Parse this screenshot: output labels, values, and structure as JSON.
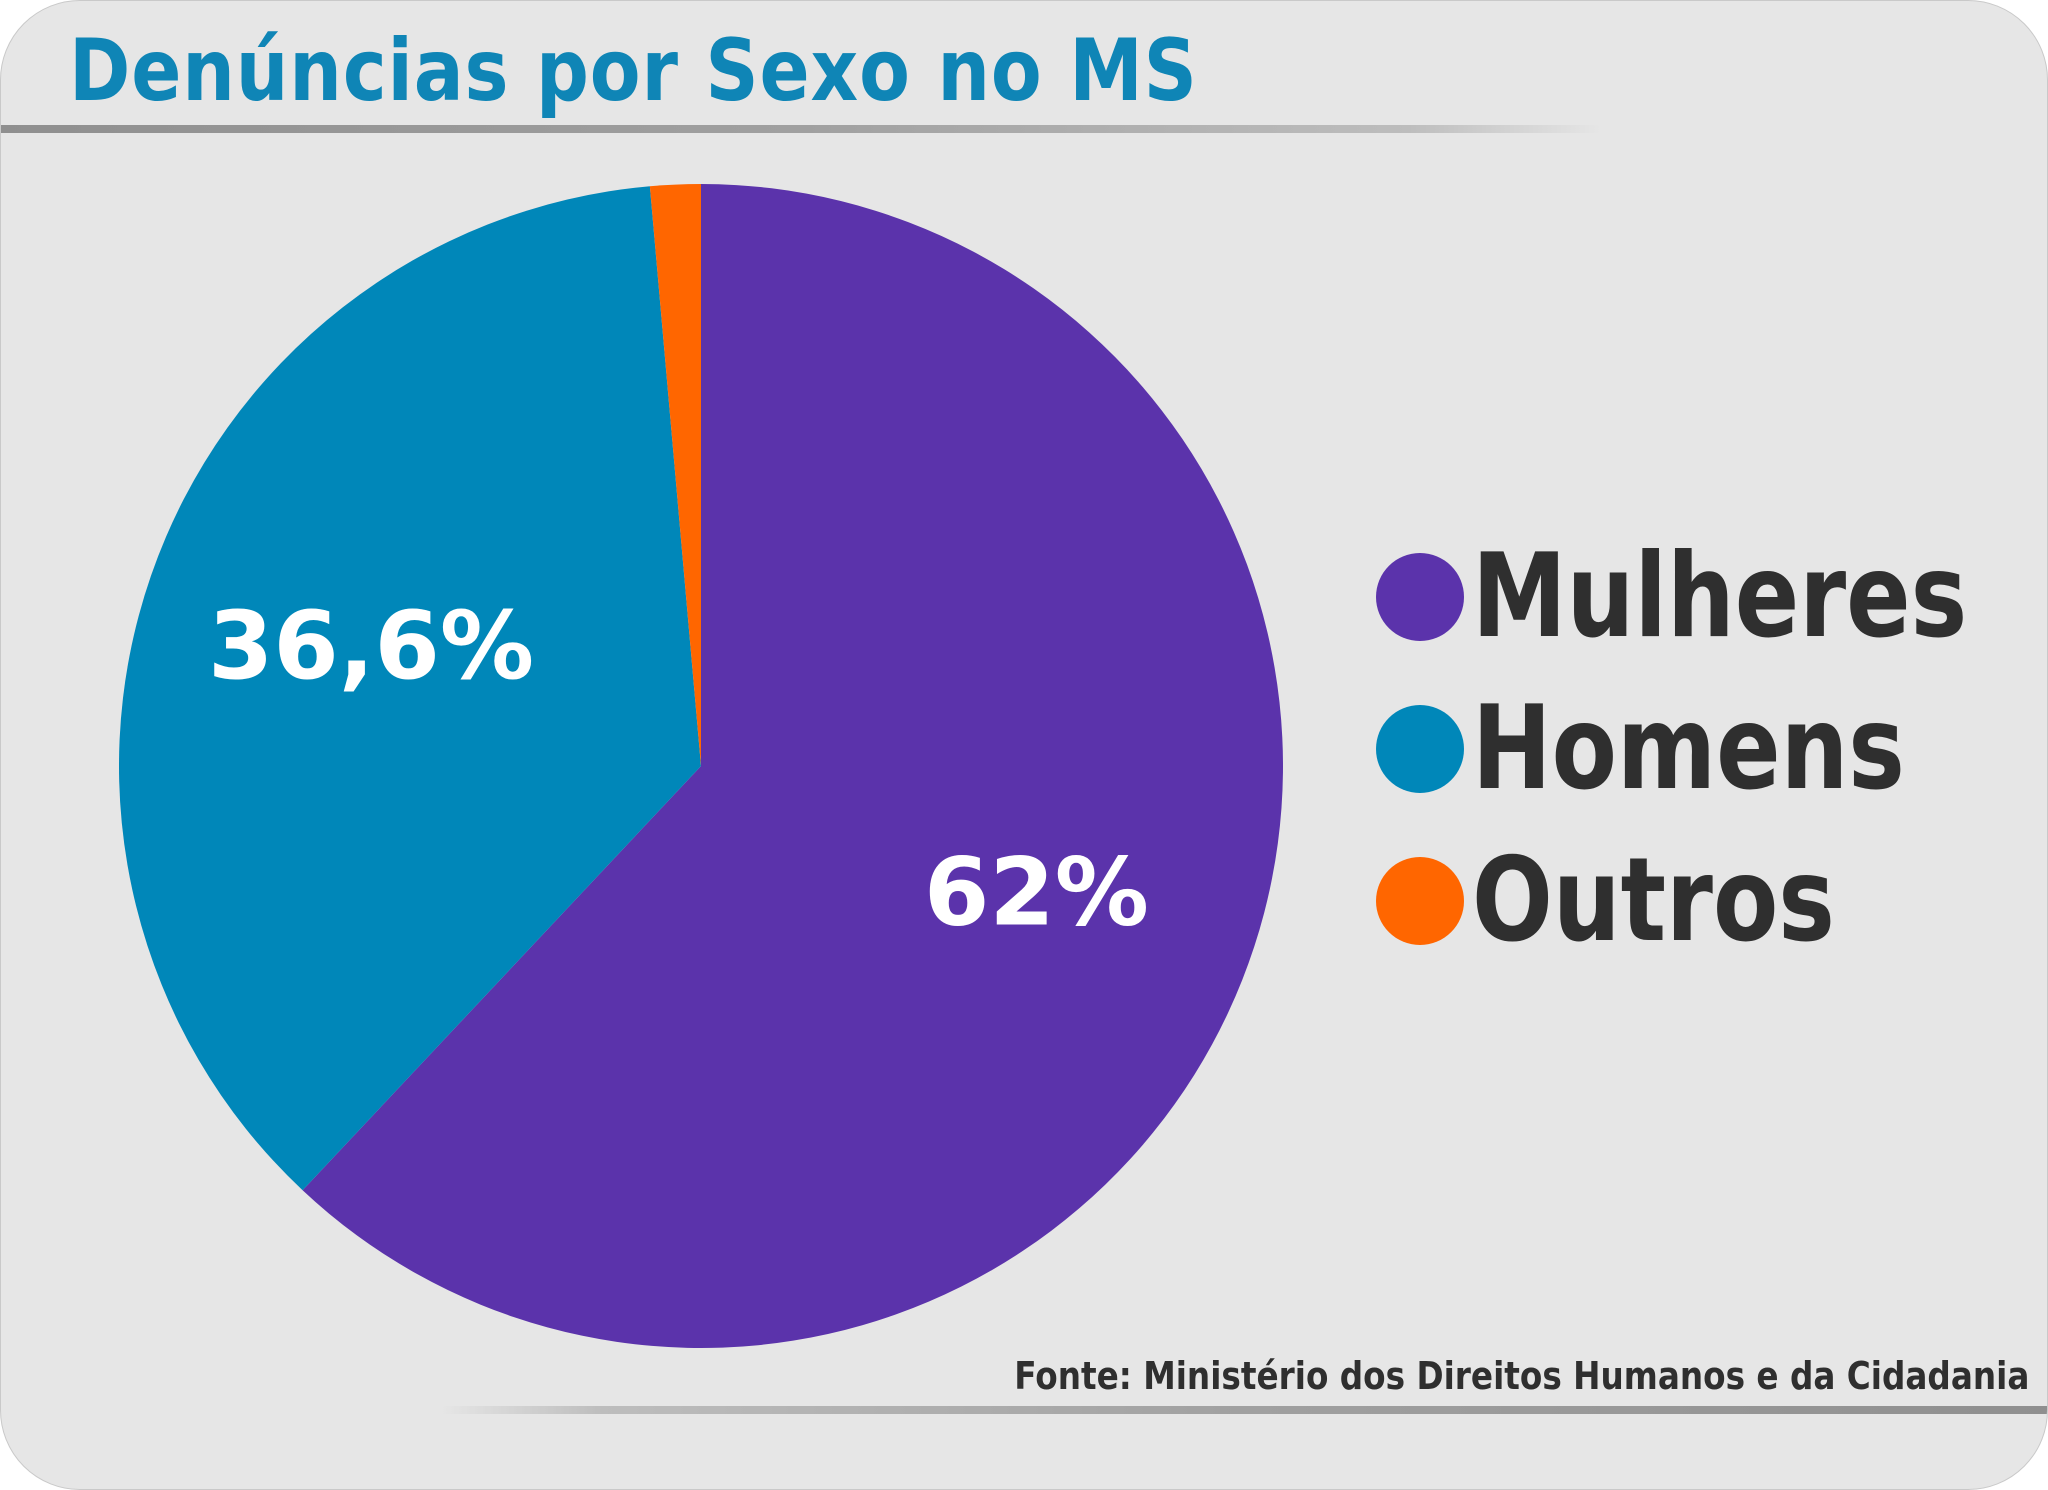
{
  "chart_data": {
    "type": "pie",
    "title": "Denúncias por Sexo no MS",
    "categories": [
      "Mulheres",
      "Homens",
      "Outros"
    ],
    "values": [
      62,
      36.6,
      1.4
    ],
    "value_labels": [
      "62%",
      "36,6%",
      ""
    ],
    "colors": [
      "#5b33ab",
      "#0087b9",
      "#ff6600"
    ],
    "legend_position": "right",
    "source": "Fonte: Ministério dos Direitos Humanos e da Cidadania"
  },
  "colors": {
    "background": "#e6e6e6",
    "title": "#0f85b6",
    "text": "#2f2f2f"
  }
}
